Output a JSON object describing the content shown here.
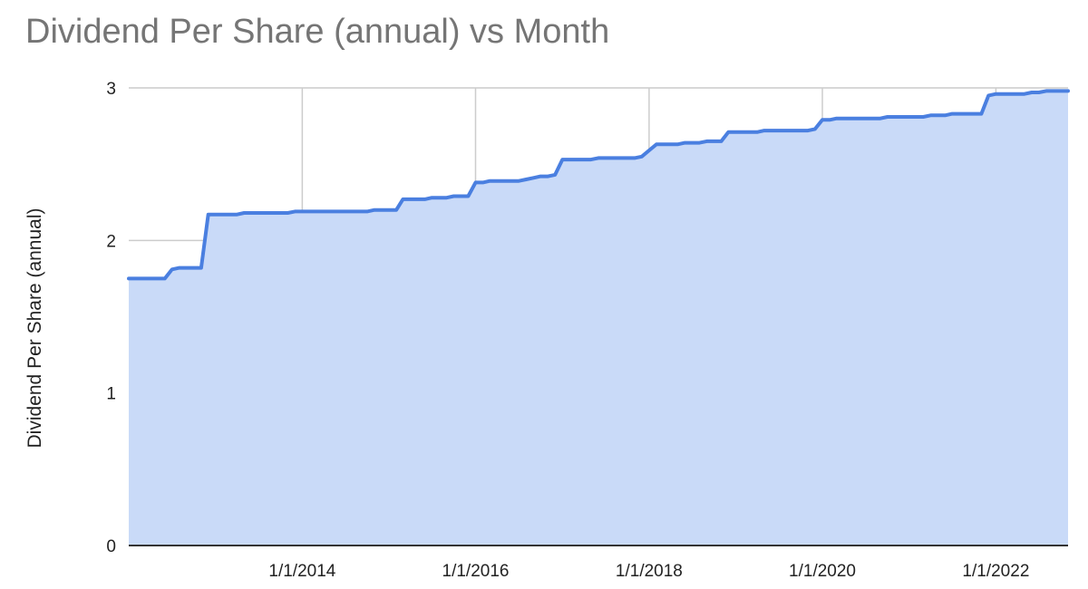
{
  "chart_data": {
    "type": "area",
    "title": "Dividend Per Share (annual) vs Month",
    "xlabel": "",
    "ylabel": "Dividend Per Share (annual)",
    "ylim": [
      0,
      3
    ],
    "xlim": [
      "2012-01-01",
      "2022-11-01"
    ],
    "y_ticks": [
      0,
      1,
      2,
      3
    ],
    "x_ticks": [
      "1/1/2014",
      "1/1/2016",
      "1/1/2018",
      "1/1/2020",
      "1/1/2022"
    ],
    "x_tick_dates": [
      "2014-01-01",
      "2016-01-01",
      "2018-01-01",
      "2020-01-01",
      "2022-01-01"
    ],
    "grid": true,
    "colors": {
      "line": "#4a7fe0",
      "fill": "#c9daf8",
      "grid": "#cccccc",
      "axis": "#333333"
    },
    "series": [
      {
        "x": [
          "2012-01-01",
          "2012-02-01",
          "2012-03-01",
          "2012-04-01",
          "2012-05-01",
          "2012-06-01",
          "2012-07-01",
          "2012-08-01",
          "2012-09-01",
          "2012-10-01",
          "2012-11-01",
          "2012-12-01",
          "2013-01-01",
          "2013-02-01",
          "2013-03-01",
          "2013-04-01",
          "2013-05-01",
          "2013-06-01",
          "2013-07-01",
          "2013-08-01",
          "2013-09-01",
          "2013-10-01",
          "2013-11-01",
          "2013-12-01",
          "2014-01-01",
          "2014-02-01",
          "2014-03-01",
          "2014-04-01",
          "2014-05-01",
          "2014-06-01",
          "2014-07-01",
          "2014-08-01",
          "2014-09-01",
          "2014-10-01",
          "2014-11-01",
          "2014-12-01",
          "2015-01-01",
          "2015-02-01",
          "2015-03-01",
          "2015-04-01",
          "2015-05-01",
          "2015-06-01",
          "2015-07-01",
          "2015-08-01",
          "2015-09-01",
          "2015-10-01",
          "2015-11-01",
          "2015-12-01",
          "2016-01-01",
          "2016-02-01",
          "2016-03-01",
          "2016-04-01",
          "2016-05-01",
          "2016-06-01",
          "2016-07-01",
          "2016-08-01",
          "2016-09-01",
          "2016-10-01",
          "2016-11-01",
          "2016-12-01",
          "2017-01-01",
          "2017-02-01",
          "2017-03-01",
          "2017-04-01",
          "2017-05-01",
          "2017-06-01",
          "2017-07-01",
          "2017-08-01",
          "2017-09-01",
          "2017-10-01",
          "2017-11-01",
          "2017-12-01",
          "2018-01-01",
          "2018-02-01",
          "2018-03-01",
          "2018-04-01",
          "2018-05-01",
          "2018-06-01",
          "2018-07-01",
          "2018-08-01",
          "2018-09-01",
          "2018-10-01",
          "2018-11-01",
          "2018-12-01",
          "2019-01-01",
          "2019-02-01",
          "2019-03-01",
          "2019-04-01",
          "2019-05-01",
          "2019-06-01",
          "2019-07-01",
          "2019-08-01",
          "2019-09-01",
          "2019-10-01",
          "2019-11-01",
          "2019-12-01",
          "2020-01-01",
          "2020-02-01",
          "2020-03-01",
          "2020-04-01",
          "2020-05-01",
          "2020-06-01",
          "2020-07-01",
          "2020-08-01",
          "2020-09-01",
          "2020-10-01",
          "2020-11-01",
          "2020-12-01",
          "2021-01-01",
          "2021-02-01",
          "2021-03-01",
          "2021-04-01",
          "2021-05-01",
          "2021-06-01",
          "2021-07-01",
          "2021-08-01",
          "2021-09-01",
          "2021-10-01",
          "2021-11-01",
          "2021-12-01",
          "2022-01-01",
          "2022-02-01",
          "2022-03-01",
          "2022-04-01",
          "2022-05-01",
          "2022-06-01",
          "2022-07-01",
          "2022-08-01",
          "2022-09-01",
          "2022-10-01",
          "2022-11-01"
        ],
        "values": [
          1.75,
          1.75,
          1.75,
          1.75,
          1.75,
          1.75,
          1.81,
          1.82,
          1.82,
          1.82,
          1.82,
          2.17,
          2.17,
          2.17,
          2.17,
          2.17,
          2.18,
          2.18,
          2.18,
          2.18,
          2.18,
          2.18,
          2.18,
          2.19,
          2.19,
          2.19,
          2.19,
          2.19,
          2.19,
          2.19,
          2.19,
          2.19,
          2.19,
          2.19,
          2.2,
          2.2,
          2.2,
          2.2,
          2.27,
          2.27,
          2.27,
          2.27,
          2.28,
          2.28,
          2.28,
          2.29,
          2.29,
          2.29,
          2.38,
          2.38,
          2.39,
          2.39,
          2.39,
          2.39,
          2.39,
          2.4,
          2.41,
          2.42,
          2.42,
          2.43,
          2.53,
          2.53,
          2.53,
          2.53,
          2.53,
          2.54,
          2.54,
          2.54,
          2.54,
          2.54,
          2.54,
          2.55,
          2.59,
          2.63,
          2.63,
          2.63,
          2.63,
          2.64,
          2.64,
          2.64,
          2.65,
          2.65,
          2.65,
          2.71,
          2.71,
          2.71,
          2.71,
          2.71,
          2.72,
          2.72,
          2.72,
          2.72,
          2.72,
          2.72,
          2.72,
          2.73,
          2.79,
          2.79,
          2.8,
          2.8,
          2.8,
          2.8,
          2.8,
          2.8,
          2.8,
          2.81,
          2.81,
          2.81,
          2.81,
          2.81,
          2.81,
          2.82,
          2.82,
          2.82,
          2.83,
          2.83,
          2.83,
          2.83,
          2.83,
          2.95,
          2.96,
          2.96,
          2.96,
          2.96,
          2.96,
          2.97,
          2.97,
          2.98,
          2.98,
          2.98,
          2.98
        ]
      }
    ]
  }
}
